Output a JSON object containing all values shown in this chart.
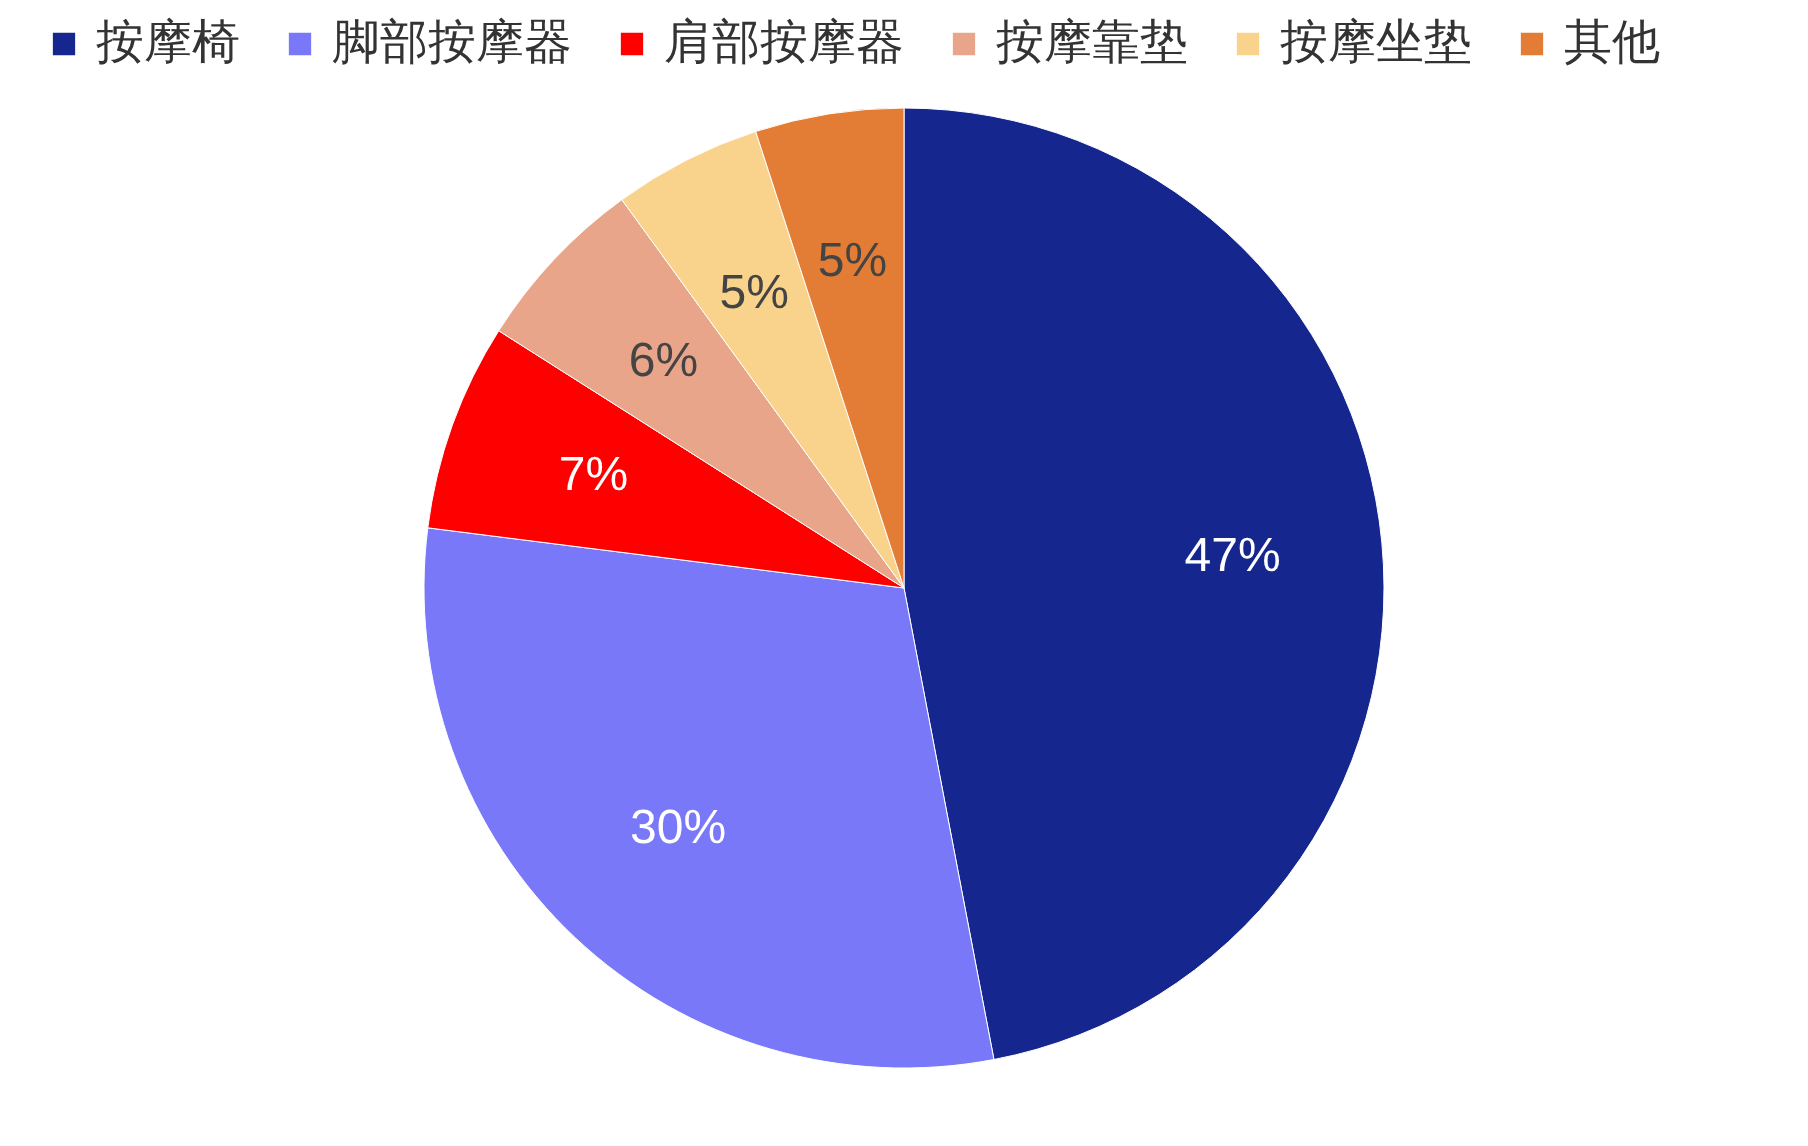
{
  "chart_data": {
    "type": "pie",
    "categories": [
      "按摩椅",
      "脚部按摩器",
      "肩部按摩器",
      "按摩靠垫",
      "按摩坐垫",
      "其他"
    ],
    "values": [
      47,
      30,
      7,
      6,
      5,
      5
    ],
    "colors": [
      "#15268f",
      "#7878f8",
      "#fe0000",
      "#e9a58a",
      "#f9d38b",
      "#e37d35"
    ],
    "value_labels": [
      "47%",
      "30%",
      "7%",
      "6%",
      "5%",
      "5%"
    ],
    "legend": "top"
  }
}
